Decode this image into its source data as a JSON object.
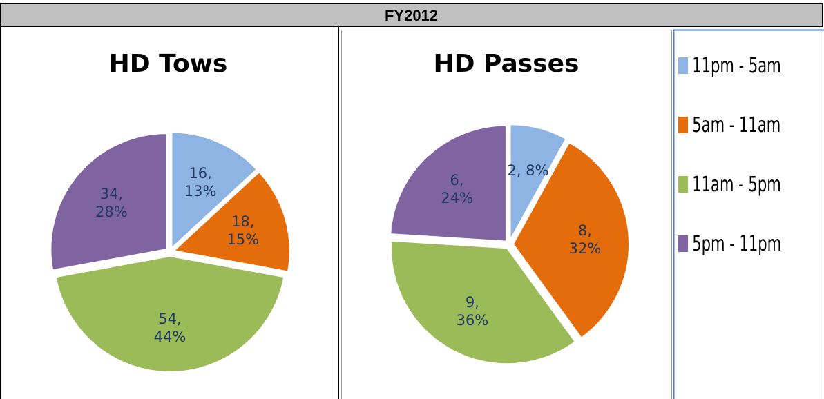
{
  "header": "FY2012",
  "chart_data": [
    {
      "type": "pie",
      "title": "HD Tows",
      "values": [
        16,
        18,
        54,
        34
      ],
      "value_labels": [
        "16, 13%",
        "18, 15%",
        "54, 44%",
        "34, 28%"
      ],
      "colors": [
        "#8eb4e3",
        "#e46c0a",
        "#9bbb59",
        "#8064a2"
      ]
    },
    {
      "type": "pie",
      "title": "HD Passes",
      "values": [
        2,
        8,
        9,
        6
      ],
      "value_labels": [
        "2, 8%",
        "8, 32%",
        "9, 36%",
        "6, 24%"
      ],
      "categories": [
        "11pm - 5am",
        "5am - 11am",
        "11am - 5pm",
        "5pm - 11pm"
      ],
      "colors": [
        "#8eb4e3",
        "#e46c0a",
        "#9bbb59",
        "#8064a2"
      ],
      "legend": "right"
    }
  ]
}
